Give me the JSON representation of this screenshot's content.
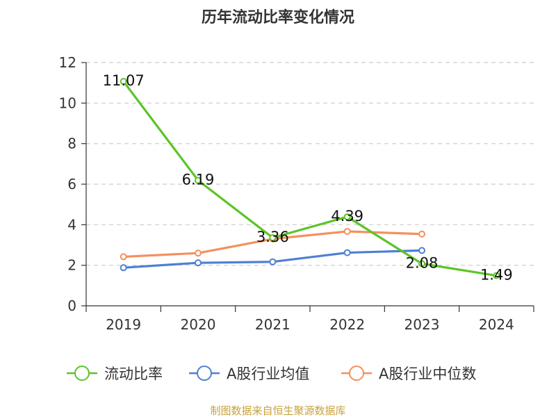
{
  "chart_data": {
    "type": "line",
    "title": "历年流动比率变化情况",
    "xlabel": "",
    "ylabel": "",
    "categories": [
      "2019",
      "2020",
      "2021",
      "2022",
      "2023",
      "2024"
    ],
    "ylim": [
      0,
      12
    ],
    "yticks": [
      0,
      2,
      4,
      6,
      8,
      10,
      12
    ],
    "grid": true,
    "legend_position": "bottom",
    "series": [
      {
        "name": "流动比率",
        "color": "#5cc427",
        "values": [
          11.07,
          6.19,
          3.36,
          4.39,
          2.08,
          1.49
        ],
        "labels": [
          "11.07",
          "6.19",
          "3.36",
          "4.39",
          "2.08",
          "1.49"
        ]
      },
      {
        "name": "A股行业均值",
        "color": "#4e7fd4",
        "values": [
          1.88,
          2.12,
          2.17,
          2.62,
          2.73,
          null
        ]
      },
      {
        "name": "A股行业中位数",
        "color": "#f4905c",
        "values": [
          2.42,
          2.6,
          3.3,
          3.67,
          3.54,
          null
        ]
      }
    ]
  },
  "source_text": "制图数据来自恒生聚源数据库"
}
